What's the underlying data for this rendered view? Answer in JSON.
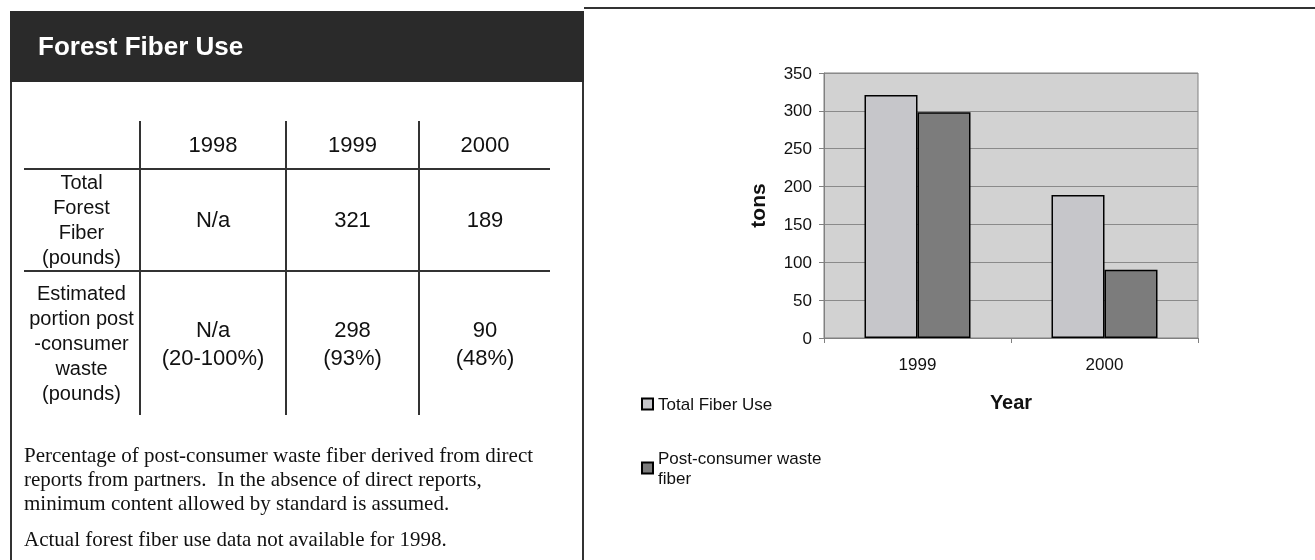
{
  "chart_data": [
    {
      "type": "other",
      "title": "Forest Fiber Use",
      "categories": [
        "1998",
        "1999",
        "2000"
      ],
      "y_categories": [
        "Total\nForest\nFiber\n(pounds)",
        "Estimated\nportion post\n-consumer\nwaste\n(pounds)"
      ],
      "cell_labels": [
        [
          "N/a",
          "321",
          "189"
        ],
        [
          "N/a\n(20-100%)",
          "298\n(93%)",
          "90\n(48%)"
        ]
      ],
      "annotations": [
        "Percentage of post-consumer waste fiber derived from direct reports from partners.  In the absence of direct reports, minimum content allowed by standard is assumed.",
        "Actual forest fiber use data not available for 1998."
      ]
    },
    {
      "type": "bar",
      "categories": [
        "1999",
        "2000"
      ],
      "series": [
        {
          "name": "Total Fiber Use",
          "color": "#c6c6ca",
          "values": [
            321,
            189
          ]
        },
        {
          "name": "Post-consumer waste fiber",
          "color": "#7c7c7c",
          "values": [
            298,
            90
          ]
        }
      ],
      "xlabel": "Year",
      "ylabel": "tons",
      "ylim": [
        0,
        350
      ],
      "yticks": [
        0,
        50,
        100,
        150,
        200,
        250,
        300,
        350
      ],
      "grid": "y",
      "legend": "bottom left"
    }
  ]
}
